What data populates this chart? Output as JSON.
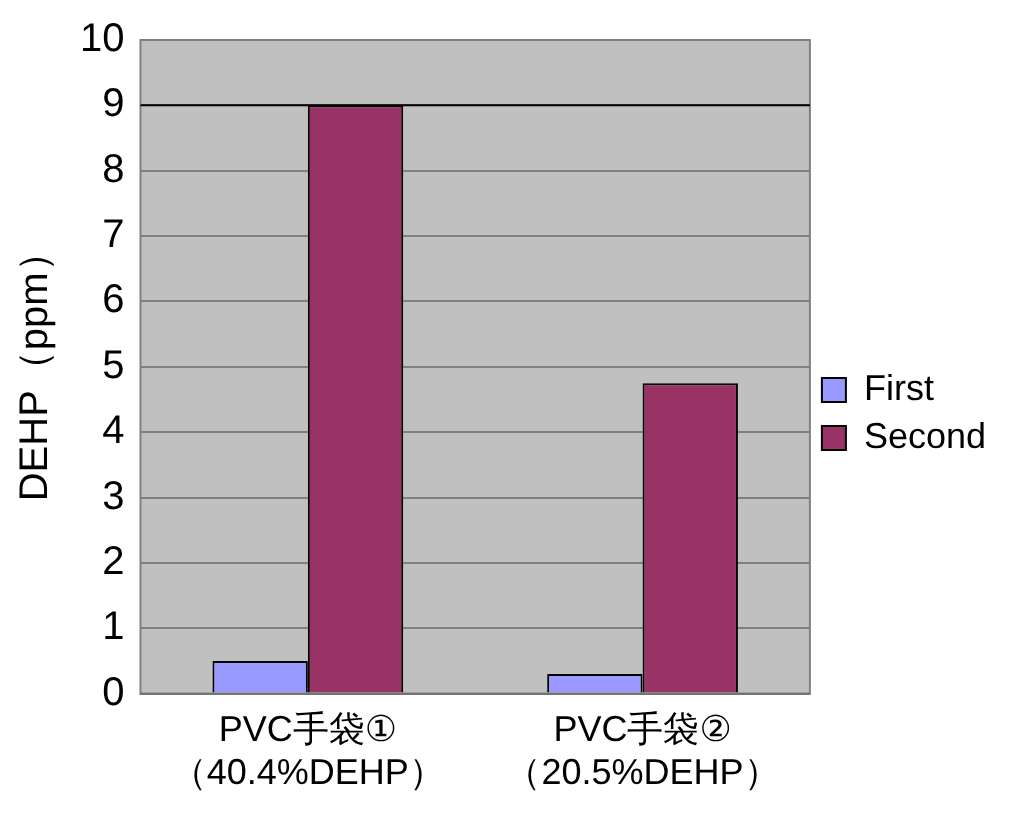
{
  "chart_data": {
    "type": "bar",
    "ylabel": "DEHP（ppm）",
    "categories": [
      "PVC手袋①\n（40.4%DEHP）",
      "PVC手袋②\n（20.5%DEHP）"
    ],
    "series": [
      {
        "name": "First",
        "color": "#9999ff",
        "values": [
          0.5,
          0.3
        ]
      },
      {
        "name": "Second",
        "color": "#993366",
        "values": [
          9.0,
          4.75
        ]
      }
    ],
    "ylim": [
      0,
      10
    ],
    "yticks": [
      0,
      1,
      2,
      3,
      4,
      5,
      6,
      7,
      8,
      9,
      10
    ],
    "grid": "y",
    "legend": "right",
    "ref_lines": [
      {
        "axis": "y",
        "value": 9,
        "color": "#000000"
      }
    ]
  }
}
